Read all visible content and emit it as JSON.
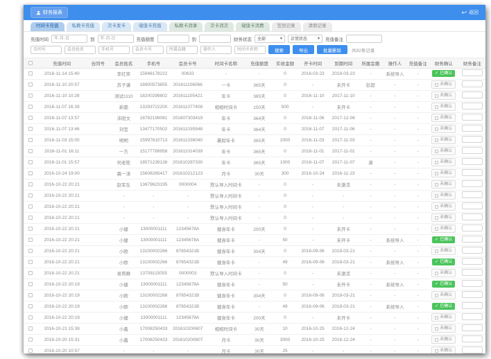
{
  "colors": {
    "topbar_blue": "#3d8eed",
    "confirmed_green": "#4bc45c",
    "active_tab_blue": "#aecdee"
  },
  "header": {
    "app_tag": "财务报表",
    "back_label": "返回"
  },
  "tabs": [
    {
      "label": "时间卡充值",
      "group": "active"
    },
    {
      "label": "私教卡充值",
      "group": "blue"
    },
    {
      "label": "次卡发卡",
      "group": "blue"
    },
    {
      "label": "储值卡充值",
      "group": "blue"
    },
    {
      "label": "私教卡消课",
      "group": "green"
    },
    {
      "label": "次卡消次",
      "group": "green"
    },
    {
      "label": "储值卡消费",
      "group": "green"
    },
    {
      "label": "签到记录",
      "group": "gray"
    },
    {
      "label": "请假记录",
      "group": "gray"
    }
  ],
  "filters": {
    "row1": {
      "time_label": "充值时间",
      "date_placeholder": "年-月-日",
      "to_label": "到",
      "quota_label": "充值额度",
      "finance_status_label": "财务状态",
      "finance_status_value": "全部",
      "normal_status_value": "正常状态",
      "recharge_note_label": "充值备注"
    },
    "row2": {
      "placeholders": [
        "合同号",
        "会员姓名",
        "手机号",
        "会员卡号",
        "所属会籍",
        "操作人",
        "时间卡名称"
      ],
      "search_label": "搜索",
      "export_label": "导出",
      "batch_delete_label": "批量删除",
      "records_count": "共82条记录"
    }
  },
  "table": {
    "columns": [
      "充值时间",
      "合同号",
      "会员姓名",
      "手机号",
      "会员卡号",
      "时间卡名称",
      "充值额度",
      "实收金额",
      "开卡时间",
      "到期时间",
      "所属会籍",
      "操作人",
      "充值备注",
      "财务确认",
      "财务备注"
    ],
    "confirm_labels": {
      "confirmed": "已确认",
      "unconfirmed": "未确认"
    },
    "rows": [
      [
        "2016-11-14 15:40",
        "",
        "李红笑",
        "15948178222",
        "00633",
        "-",
        "-",
        "0",
        "2016-03-23",
        "2018-03-23",
        "-",
        "系统导入",
        "-",
        "confirmed"
      ],
      [
        "2016-11-10 20:57",
        "",
        "苏子谦",
        "18900573855",
        "201611106066",
        "一卡",
        "365天",
        "0",
        "-",
        "未开卡",
        "彭超",
        "-",
        "-",
        "unconfirmed"
      ],
      [
        "2016-11-10 10:28",
        "",
        "测试1110",
        "18200299802",
        "201611105421",
        "年卡",
        "365天",
        "0",
        "2016-11-10",
        "2017-11-10",
        "-",
        "-",
        "-",
        "unconfirmed"
      ],
      [
        "2016-11-07 16:39",
        "",
        "新都",
        "13293722200",
        "201611077408",
        "相相时间卡",
        "150天",
        "500",
        "-",
        "未开卡",
        "-",
        "-",
        "-",
        "unconfirmed"
      ],
      [
        "2016-11-07 13:57",
        "",
        "沛阳文",
        "18782199081",
        "201607303419",
        "年卡",
        "364天",
        "0",
        "2016-11-06",
        "2017-12-06",
        "-",
        "-",
        "-",
        "unconfirmed"
      ],
      [
        "2016-11-07 13:46",
        "",
        "刘莹",
        "13477170502",
        "201611035948",
        "年卡",
        "364天",
        "0",
        "2016-11-07",
        "2017-11-06",
        "-",
        "-",
        "-",
        "unconfirmed"
      ],
      [
        "2016-11-03 15:00",
        "",
        "明明",
        "15997610713",
        "201611036040",
        "暑假年卡",
        "365天",
        "2000",
        "2016-11-03",
        "2017-11-03",
        "-",
        "-",
        "-",
        "unconfirmed"
      ],
      [
        "2016-11-01 16:11",
        "",
        "一方",
        "15177789958",
        "201611014039",
        "年卡",
        "365天",
        "0",
        "2016-11-01",
        "2017-11-01",
        "-",
        "-",
        "-",
        "unconfirmed"
      ],
      [
        "2016-11-01 15:57",
        "",
        "何老陈",
        "18571239138",
        "201610287330",
        "年卡",
        "365天",
        "1000",
        "2016-11-07",
        "2017-11-07",
        "满",
        "-",
        "-",
        "unconfirmed"
      ],
      [
        "2016-10-24 19:00",
        "",
        "晨一涛",
        "15608265417",
        "201610212123",
        "月卡",
        "30天",
        "300",
        "2016-10-24",
        "2016-11-23",
        "-",
        "-",
        "-",
        "unconfirmed"
      ],
      [
        "2016-10-22 20:21",
        "",
        "赵军生",
        "13679623195",
        "0000004",
        "默认导入时间卡",
        "-",
        "0",
        "-",
        "未激活",
        "-",
        "-",
        "-",
        "unconfirmed"
      ],
      [
        "2016-10-22 20:21",
        "",
        "-",
        "-",
        "-",
        "默认导入时间卡",
        "-",
        "0",
        "-",
        "-",
        "-",
        "-",
        "-",
        "unconfirmed"
      ],
      [
        "2016-10-22 20:21",
        "",
        "-",
        "-",
        "-",
        "默认导入时间卡",
        "-",
        "0",
        "-",
        "-",
        "-",
        "-",
        "-",
        "unconfirmed"
      ],
      [
        "2016-10-22 20:21",
        "",
        "-",
        "-",
        "-",
        "默认导入时间卡",
        "-",
        "0",
        "-",
        "-",
        "-",
        "-",
        "-",
        "unconfirmed"
      ],
      [
        "2016-10-22 20:21",
        "",
        "小健",
        "13000001111",
        "12345678A",
        "健身年卡",
        "200天",
        "0",
        "-",
        "未开卡",
        "-",
        "-",
        "-",
        "unconfirmed"
      ],
      [
        "2016-10-22 20:21",
        "",
        "小健",
        "13000001111",
        "12345678A",
        "健身年卡",
        "-",
        "50",
        "-",
        "未开卡",
        "-",
        "系统导入",
        "-",
        "confirmed"
      ],
      [
        "2016-10-22 20:21",
        "",
        "小欧",
        "13100002266",
        "87654321B",
        "健身年卡",
        "304天",
        "0",
        "2016-09-06",
        "2018-03-21",
        "-",
        "-",
        "-",
        "unconfirmed"
      ],
      [
        "2016-10-22 20:21",
        "",
        "小欧",
        "13100002266",
        "87654321B",
        "健身年卡",
        "-",
        "49",
        "2016-09-06",
        "2018-03-21",
        "-",
        "系统导入",
        "-",
        "confirmed"
      ],
      [
        "2016-10-22 20:21",
        "",
        "易莉静",
        "13708115055",
        "0000003",
        "默认导入时间卡",
        "-",
        "0",
        "-",
        "未激活",
        "-",
        "-",
        "-",
        "unconfirmed"
      ],
      [
        "2016-10-22 20:19",
        "",
        "小健",
        "13000001111",
        "12345678A",
        "健身年卡",
        "-",
        "50",
        "-",
        "未开卡",
        "-",
        "系统导入",
        "-",
        "confirmed"
      ],
      [
        "2016-10-22 20:19",
        "",
        "小欧",
        "13100002266",
        "87654321B",
        "健身年卡",
        "304天",
        "0",
        "2016-09-06",
        "2018-03-21",
        "-",
        "-",
        "-",
        "unconfirmed"
      ],
      [
        "2016-10-22 20:19",
        "",
        "小欧",
        "13100002266",
        "87654321B",
        "健身年卡",
        "-",
        "49",
        "2016-09-06",
        "2018-03-21",
        "-",
        "系统导入",
        "-",
        "confirmed"
      ],
      [
        "2016-10-22 20:19",
        "",
        "小健",
        "13000001111",
        "12345678A",
        "健身年卡",
        "200天",
        "0",
        "-",
        "未开卡",
        "-",
        "-",
        "-",
        "unconfirmed"
      ],
      [
        "2016-10-21 15:38",
        "",
        "小鑫",
        "17008250433",
        "201610200607",
        "相相时间卡",
        "30天",
        "10",
        "2016-10-25",
        "2016-12-24",
        "-",
        "-",
        "-",
        "unconfirmed"
      ],
      [
        "2016-10-20 15:31",
        "",
        "小鑫",
        "17008250433",
        "201610200607",
        "月卡",
        "30天",
        "3000",
        "2016-10-25",
        "2016-12-24",
        "-",
        "-",
        "-",
        "unconfirmed"
      ],
      [
        "2016-10-20 10:57",
        "",
        "-",
        "-",
        "-",
        "月卡",
        "30天",
        "25",
        "-",
        "-",
        "-",
        "-",
        "-",
        "unconfirmed"
      ]
    ]
  }
}
